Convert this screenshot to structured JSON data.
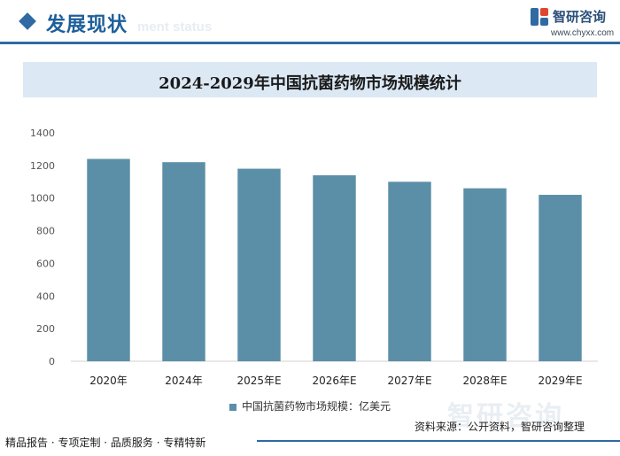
{
  "header": {
    "section_title": "发展现状",
    "section_subtitle": "ment status",
    "brand_name": "智研咨询",
    "brand_url": "www.chyxx.com"
  },
  "colors": {
    "accent": "#2f6aa3",
    "bar": "#5b8fa8",
    "title_band": "#dce9f5"
  },
  "chart_data": {
    "type": "bar",
    "title": "2024-2029年中国抗菌药物市场规模统计",
    "categories": [
      "2020年",
      "2024年",
      "2025年E",
      "2026年E",
      "2027年E",
      "2028年E",
      "2029年E"
    ],
    "series": [
      {
        "name": "中国抗菌药物市场规模：亿美元",
        "values": [
          1240,
          1220,
          1180,
          1140,
          1100,
          1060,
          1020
        ]
      }
    ],
    "yticks": [
      0,
      200,
      400,
      600,
      800,
      1000,
      1200,
      1400
    ],
    "ylim": [
      0,
      1400
    ],
    "xlabel": "",
    "ylabel": "",
    "legend_position": "bottom"
  },
  "watermark": "智研咨询",
  "source": "资料来源：公开资料，智研咨询整理",
  "footer": "精品报告 · 专项定制 · 品质服务 · 专精特新"
}
